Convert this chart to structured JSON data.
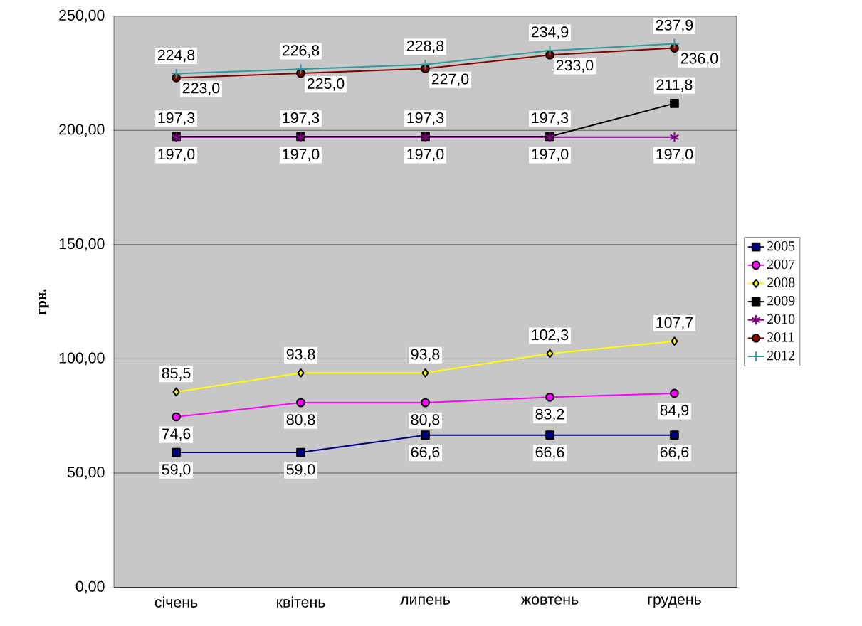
{
  "chart_data": {
    "type": "line",
    "ylabel": "грн.",
    "categories": [
      "січень",
      "квітень",
      "липень",
      "жовтень",
      "грудень"
    ],
    "ylim": [
      0,
      250
    ],
    "yticks": [
      {
        "value": 0,
        "label": "0,00"
      },
      {
        "value": 50,
        "label": "50,00"
      },
      {
        "value": 100,
        "label": "100,00"
      },
      {
        "value": 150,
        "label": "150,00"
      },
      {
        "value": 200,
        "label": "200,00"
      },
      {
        "value": 250,
        "label": "250,00"
      }
    ],
    "grid": "y",
    "legend": "right",
    "line_style": "solid",
    "series": [
      {
        "name": "2005",
        "color": "#000080",
        "marker": "square",
        "values": [
          59.0,
          59.0,
          66.6,
          66.6,
          66.6
        ],
        "value_labels": [
          "59,0",
          "59,0",
          "66,6",
          "66,6",
          "66,6"
        ]
      },
      {
        "name": "2007",
        "color": "#ff00ff",
        "marker": "circle",
        "values": [
          74.6,
          80.8,
          80.8,
          83.2,
          84.9
        ],
        "value_labels": [
          "74,6",
          "80,8",
          "80,8",
          "83,2",
          "84,9"
        ]
      },
      {
        "name": "2008",
        "color": "#ffff00",
        "marker": "diamond",
        "values": [
          85.5,
          93.8,
          93.8,
          102.3,
          107.7
        ],
        "value_labels": [
          "85,5",
          "93,8",
          "93,8",
          "102,3",
          "107,7"
        ]
      },
      {
        "name": "2009",
        "color": "#000000",
        "marker": "square",
        "values": [
          197.3,
          197.3,
          197.3,
          197.3,
          211.8
        ],
        "value_labels": [
          "197,3",
          "197,3",
          "197,3",
          "197,3",
          "211,8"
        ]
      },
      {
        "name": "2010",
        "color": "#800080",
        "marker": "cross",
        "values": [
          197.0,
          197.0,
          197.0,
          197.0,
          197.0
        ],
        "value_labels": [
          "197,0",
          "197,0",
          "197,0",
          "197,0",
          "197,0"
        ]
      },
      {
        "name": "2011",
        "color": "#800000",
        "marker": "circle",
        "values": [
          223.0,
          225.0,
          227.0,
          233.0,
          236.0
        ],
        "value_labels": [
          "223,0",
          "225,0",
          "227,0",
          "233,0",
          "236,0"
        ]
      },
      {
        "name": "2012",
        "color": "#339999",
        "marker": "cross",
        "values": [
          224.8,
          226.8,
          228.8,
          234.9,
          237.9
        ],
        "value_labels": [
          "224,8",
          "226,8",
          "228,8",
          "234,9",
          "237,9"
        ]
      }
    ]
  }
}
